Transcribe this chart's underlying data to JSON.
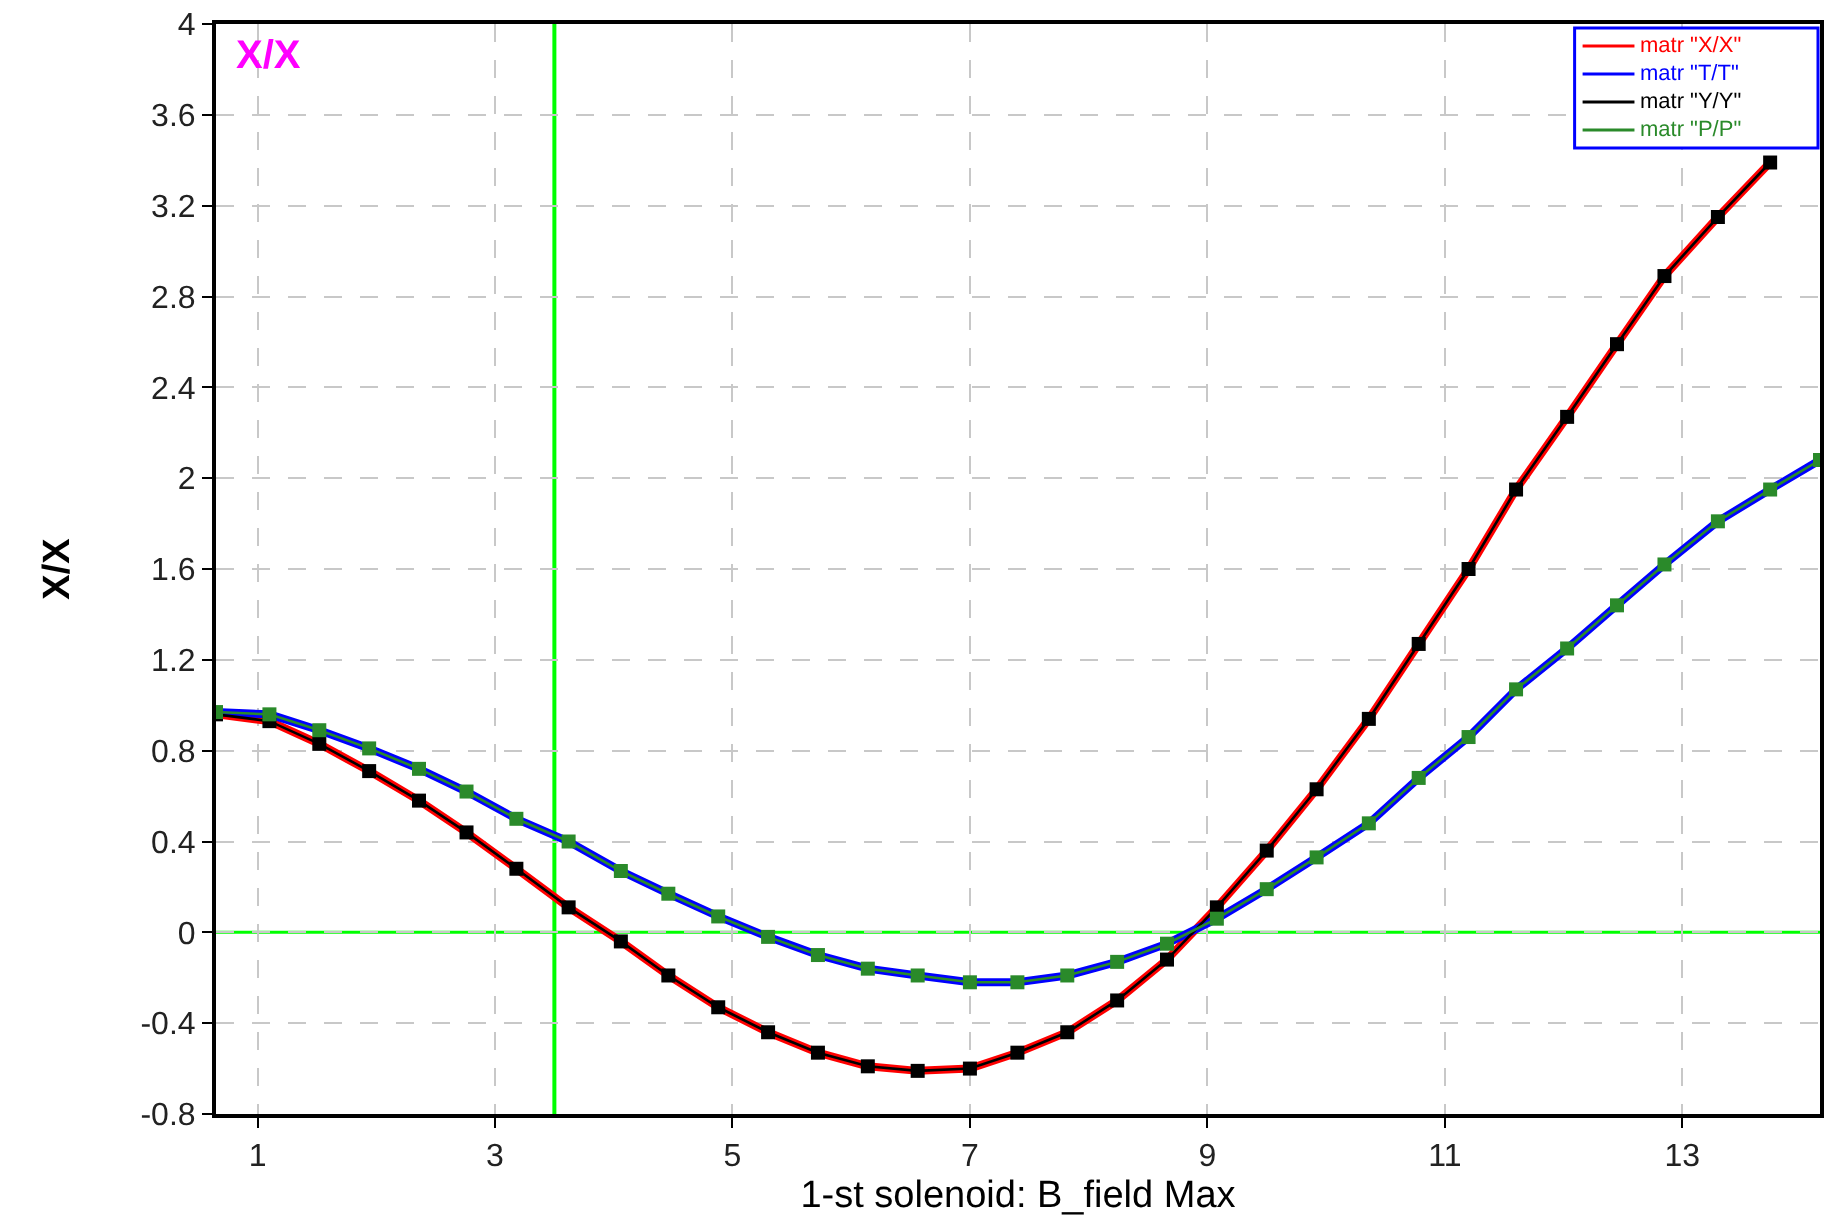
{
  "chart_data": {
    "type": "line",
    "annotations": [
      "X/X"
    ],
    "xlabel": "1-st solenoid: B_field Max",
    "ylabel": "X/X",
    "xlim": [
      0.65,
      14.16
    ],
    "ylim": [
      -0.8,
      4
    ],
    "xticks": [
      1,
      3,
      5,
      7,
      9,
      11,
      13
    ],
    "yticks": [
      -0.8,
      -0.4,
      0,
      0.4,
      0.8,
      1.2,
      1.6,
      2,
      2.4,
      2.8,
      3.2,
      3.6,
      4
    ],
    "grid": true,
    "legend": "top right",
    "line_style": "solid",
    "ref_lines": [
      {
        "axis": "x",
        "value": 3.5,
        "color": "#00ff00"
      },
      {
        "axis": "y",
        "value": 0,
        "color": "#00ff00"
      }
    ],
    "series": [
      {
        "name": "matr \"X/X\"",
        "color": "#ff0000",
        "marker": "none",
        "x": [
          0.65,
          1.1,
          1.52,
          1.94,
          2.36,
          2.76,
          3.18,
          3.62,
          4.06,
          4.46,
          4.88,
          5.3,
          5.72,
          6.14,
          6.56,
          7.0,
          7.4,
          7.82,
          8.24,
          8.66,
          9.08,
          9.5,
          9.92,
          10.36,
          10.78,
          11.2,
          11.6,
          12.03,
          12.45,
          12.85,
          13.3,
          13.74
        ],
        "values": [
          0.96,
          0.93,
          0.83,
          0.71,
          0.58,
          0.44,
          0.28,
          0.11,
          -0.04,
          -0.19,
          -0.33,
          -0.44,
          -0.53,
          -0.59,
          -0.61,
          -0.6,
          -0.53,
          -0.44,
          -0.3,
          -0.12,
          0.11,
          0.36,
          0.63,
          0.94,
          1.27,
          1.6,
          1.95,
          2.27,
          2.59,
          2.89,
          3.15,
          3.39
        ]
      },
      {
        "name": "matr \"T/T\"",
        "color": "#0000ff",
        "marker": "none",
        "x": [
          0.65,
          1.1,
          1.52,
          1.94,
          2.36,
          2.76,
          3.18,
          3.62,
          4.06,
          4.46,
          4.88,
          5.3,
          5.72,
          6.14,
          6.56,
          7.0,
          7.4,
          7.82,
          8.24,
          8.66,
          9.08,
          9.5,
          9.92,
          10.36,
          10.78,
          11.2,
          11.6,
          12.03,
          12.45,
          12.85,
          13.3,
          13.74,
          14.16
        ],
        "values": [
          0.97,
          0.96,
          0.89,
          0.81,
          0.72,
          0.62,
          0.5,
          0.4,
          0.27,
          0.17,
          0.07,
          -0.02,
          -0.1,
          -0.16,
          -0.19,
          -0.22,
          -0.22,
          -0.19,
          -0.13,
          -0.05,
          0.06,
          0.19,
          0.33,
          0.48,
          0.68,
          0.86,
          1.07,
          1.25,
          1.44,
          1.62,
          1.81,
          1.95,
          2.08
        ]
      },
      {
        "name": "matr \"Y/Y\"",
        "color": "#000000",
        "marker": "square",
        "x": [
          0.65,
          1.1,
          1.52,
          1.94,
          2.36,
          2.76,
          3.18,
          3.62,
          4.06,
          4.46,
          4.88,
          5.3,
          5.72,
          6.14,
          6.56,
          7.0,
          7.4,
          7.82,
          8.24,
          8.66,
          9.08,
          9.5,
          9.92,
          10.36,
          10.78,
          11.2,
          11.6,
          12.03,
          12.45,
          12.85,
          13.3,
          13.74
        ],
        "values": [
          0.96,
          0.93,
          0.83,
          0.71,
          0.58,
          0.44,
          0.28,
          0.11,
          -0.04,
          -0.19,
          -0.33,
          -0.44,
          -0.53,
          -0.59,
          -0.61,
          -0.6,
          -0.53,
          -0.44,
          -0.3,
          -0.12,
          0.11,
          0.36,
          0.63,
          0.94,
          1.27,
          1.6,
          1.95,
          2.27,
          2.59,
          2.89,
          3.15,
          3.39
        ]
      },
      {
        "name": "matr \"P/P\"",
        "color": "#2a8a2a",
        "marker": "square",
        "x": [
          0.65,
          1.1,
          1.52,
          1.94,
          2.36,
          2.76,
          3.18,
          3.62,
          4.06,
          4.46,
          4.88,
          5.3,
          5.72,
          6.14,
          6.56,
          7.0,
          7.4,
          7.82,
          8.24,
          8.66,
          9.08,
          9.5,
          9.92,
          10.36,
          10.78,
          11.2,
          11.6,
          12.03,
          12.45,
          12.85,
          13.3,
          13.74,
          14.16
        ],
        "values": [
          0.97,
          0.96,
          0.89,
          0.81,
          0.72,
          0.62,
          0.5,
          0.4,
          0.27,
          0.17,
          0.07,
          -0.02,
          -0.1,
          -0.16,
          -0.19,
          -0.22,
          -0.22,
          -0.19,
          -0.13,
          -0.05,
          0.06,
          0.19,
          0.33,
          0.48,
          0.68,
          0.86,
          1.07,
          1.25,
          1.44,
          1.62,
          1.81,
          1.95,
          2.08
        ]
      }
    ]
  }
}
